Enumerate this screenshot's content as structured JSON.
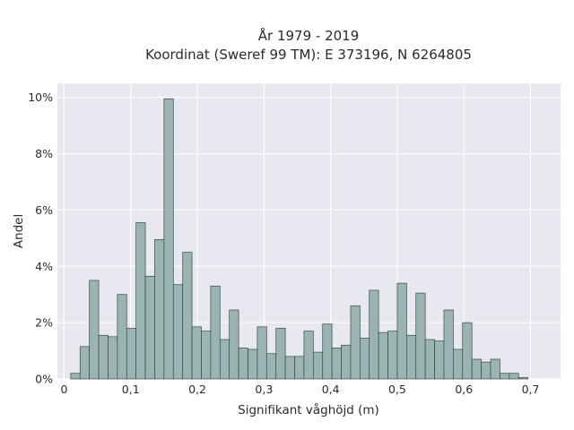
{
  "chart_data": {
    "type": "bar",
    "title": "År 1979 - 2019",
    "subtitle": "Koordinat (Sweref 99 TM): E 373196, N 6264805",
    "xlabel": "Signifikant våghöjd (m)",
    "ylabel": "Andel",
    "xlim": [
      -0.01,
      0.745
    ],
    "ylim": [
      0,
      10.5
    ],
    "x_ticks": [
      0,
      0.1,
      0.2,
      0.3,
      0.4,
      0.5,
      0.6,
      0.7
    ],
    "x_tick_labels": [
      "0",
      "0,1",
      "0,2",
      "0,3",
      "0,4",
      "0,5",
      "0,6",
      "0,7"
    ],
    "y_ticks": [
      0,
      2,
      4,
      6,
      8,
      10
    ],
    "y_tick_labels": [
      "0%",
      "2%",
      "4%",
      "6%",
      "8%",
      "10%"
    ],
    "bin_start": 0.01,
    "bin_width": 0.014,
    "values": [
      0.2,
      1.15,
      3.5,
      1.55,
      1.5,
      3.0,
      1.8,
      5.55,
      3.65,
      4.95,
      9.95,
      3.35,
      4.5,
      1.85,
      1.7,
      3.3,
      1.4,
      2.45,
      1.1,
      1.05,
      1.85,
      0.9,
      1.8,
      0.8,
      0.8,
      1.7,
      0.95,
      1.95,
      1.1,
      1.2,
      2.6,
      1.45,
      3.15,
      1.65,
      1.7,
      3.4,
      1.55,
      3.05,
      1.4,
      1.35,
      2.45,
      1.05,
      2.0,
      0.7,
      0.6,
      0.7,
      0.2,
      0.2,
      0.05
    ],
    "grid": true,
    "colors": {
      "bar_fill": "#9ab4b4",
      "bar_stroke": "#3c4848",
      "plot_bg": "#e8e8f0",
      "grid": "#ffffff"
    }
  }
}
